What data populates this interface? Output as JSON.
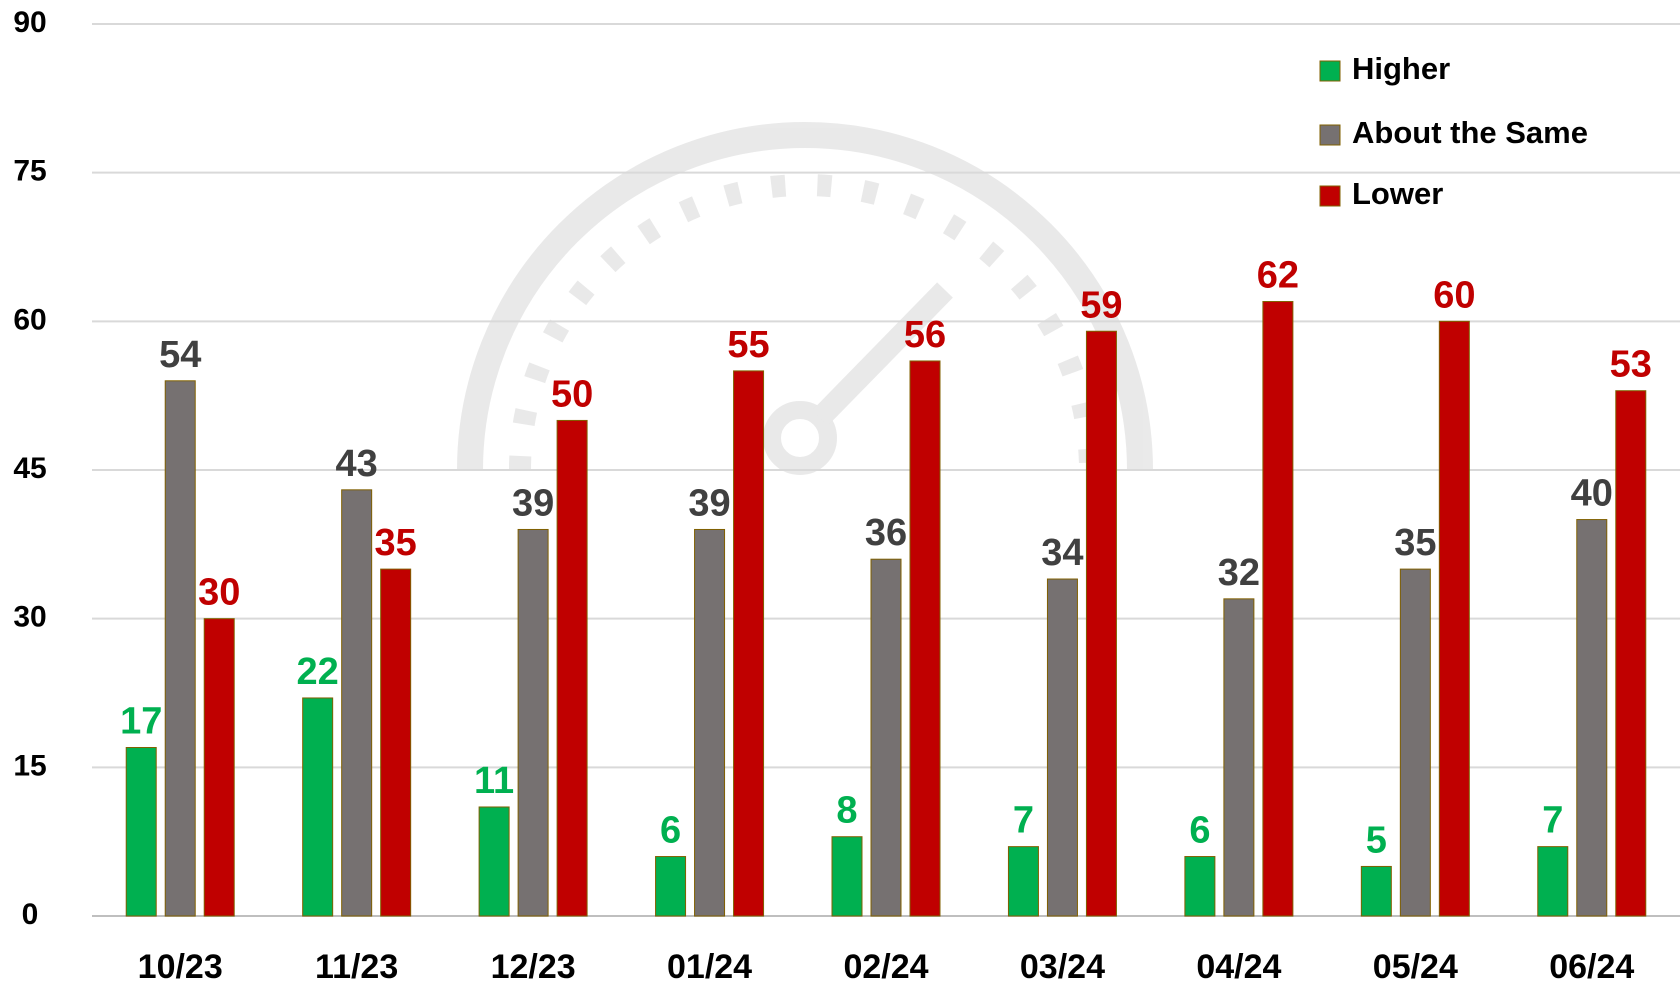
{
  "chart_data": {
    "type": "bar",
    "categories": [
      "10/23",
      "11/23",
      "12/23",
      "01/24",
      "02/24",
      "03/24",
      "04/24",
      "05/24",
      "06/24"
    ],
    "series": [
      {
        "name": "Higher",
        "color": "#00b050",
        "label_color": "#00b050",
        "values": [
          17,
          22,
          11,
          6,
          8,
          7,
          6,
          5,
          7
        ]
      },
      {
        "name": "About the Same",
        "color": "#767171",
        "label_color": "#404040",
        "values": [
          54,
          43,
          39,
          39,
          36,
          34,
          32,
          35,
          40
        ]
      },
      {
        "name": "Lower",
        "color": "#c00000",
        "label_color": "#c00000",
        "values": [
          30,
          35,
          50,
          55,
          56,
          59,
          62,
          60,
          53
        ]
      }
    ],
    "ylim": [
      0,
      90
    ],
    "yticks": [
      0,
      15,
      30,
      45,
      60,
      75,
      90
    ],
    "grid": true,
    "legend": "top-right"
  }
}
